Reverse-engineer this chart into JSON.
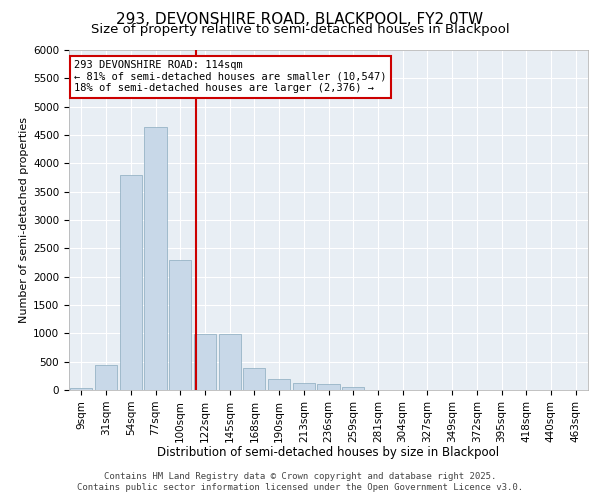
{
  "title1": "293, DEVONSHIRE ROAD, BLACKPOOL, FY2 0TW",
  "title2": "Size of property relative to semi-detached houses in Blackpool",
  "xlabel": "Distribution of semi-detached houses by size in Blackpool",
  "ylabel": "Number of semi-detached properties",
  "categories": [
    "9sqm",
    "31sqm",
    "54sqm",
    "77sqm",
    "100sqm",
    "122sqm",
    "145sqm",
    "168sqm",
    "190sqm",
    "213sqm",
    "236sqm",
    "259sqm",
    "281sqm",
    "304sqm",
    "327sqm",
    "349sqm",
    "372sqm",
    "395sqm",
    "418sqm",
    "440sqm",
    "463sqm"
  ],
  "values": [
    30,
    450,
    3800,
    4650,
    2300,
    980,
    980,
    390,
    200,
    120,
    100,
    50,
    0,
    0,
    0,
    0,
    0,
    0,
    0,
    0,
    0
  ],
  "bar_color": "#c8d8e8",
  "bar_edge_color": "#8aaabf",
  "marker_label": "293 DEVONSHIRE ROAD: 114sqm",
  "smaller_pct": 81,
  "smaller_count": 10547,
  "larger_pct": 18,
  "larger_count": 2376,
  "vline_color": "#cc0000",
  "annotation_border_color": "#cc0000",
  "ylim": [
    0,
    6000
  ],
  "yticks": [
    0,
    500,
    1000,
    1500,
    2000,
    2500,
    3000,
    3500,
    4000,
    4500,
    5000,
    5500,
    6000
  ],
  "background_color": "#e8eef4",
  "footer_line1": "Contains HM Land Registry data © Crown copyright and database right 2025.",
  "footer_line2": "Contains public sector information licensed under the Open Government Licence v3.0.",
  "title1_fontsize": 11,
  "title2_fontsize": 9.5,
  "xlabel_fontsize": 8.5,
  "ylabel_fontsize": 8,
  "tick_fontsize": 7.5,
  "footer_fontsize": 6.5,
  "annot_fontsize": 7.5
}
